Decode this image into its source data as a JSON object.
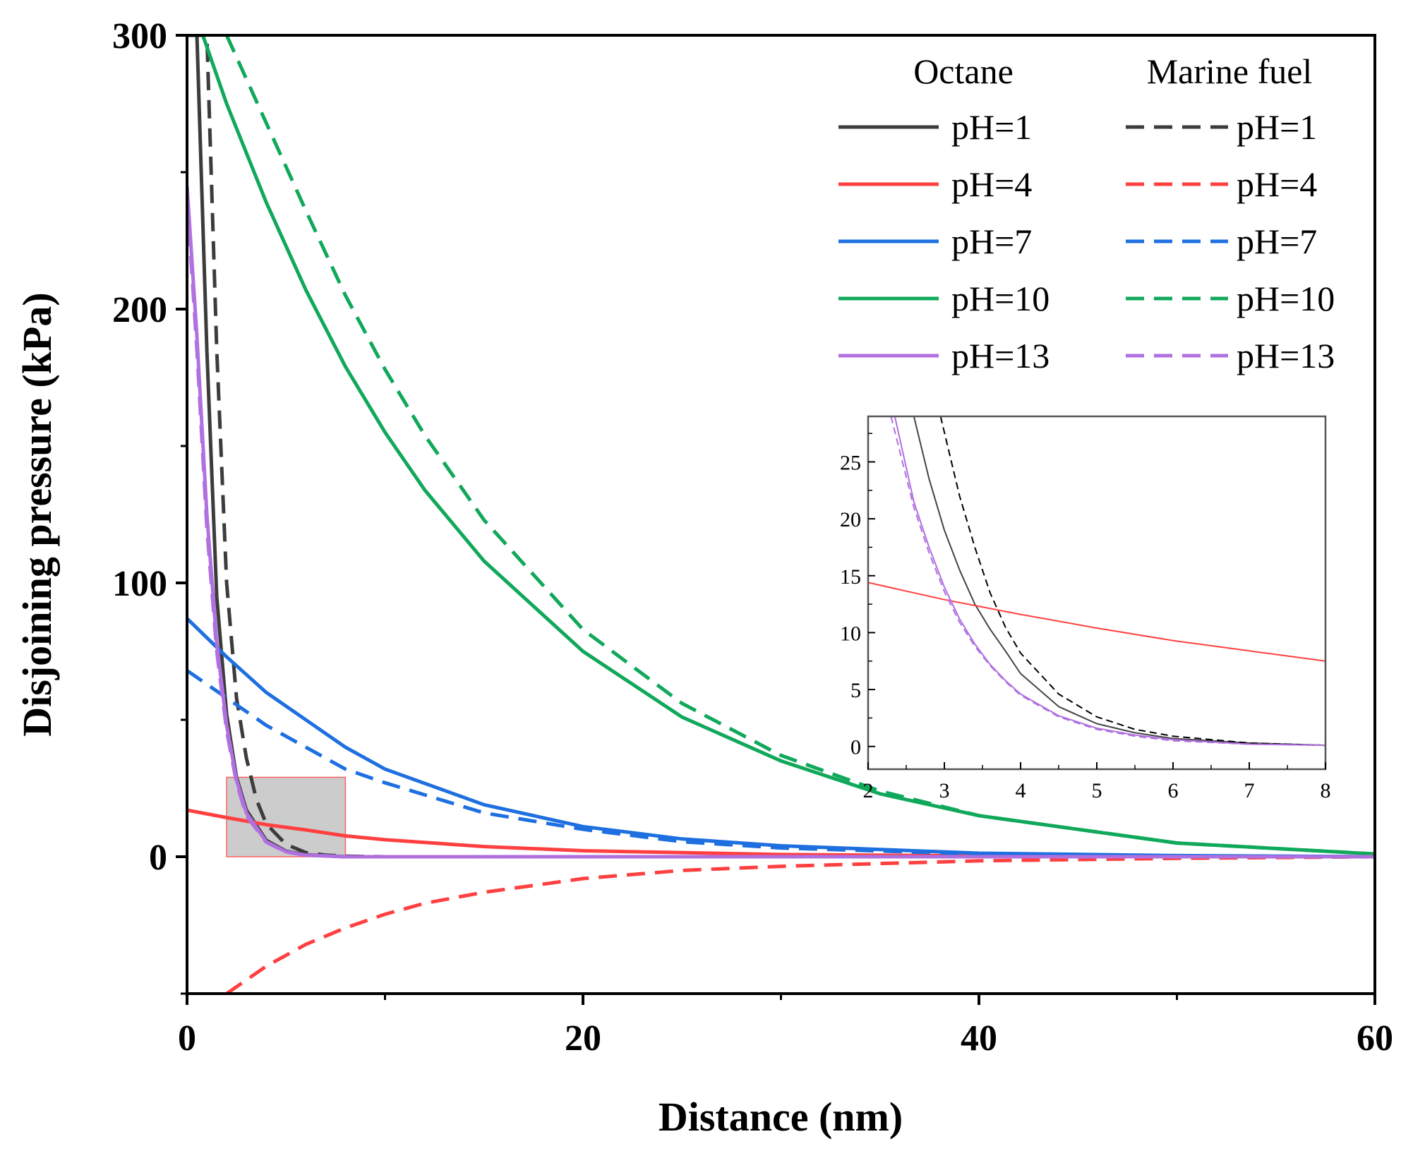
{
  "chart_data": [
    {
      "type": "line",
      "xlabel": "Distance (nm)",
      "ylabel": "Disjoining pressure (kPa)",
      "xlim": [
        0,
        60
      ],
      "ylim": [
        -50,
        300
      ],
      "x_ticks": [
        "0",
        "20",
        "40",
        "60"
      ],
      "y_ticks": [
        "0",
        "100",
        "200",
        "300"
      ],
      "grid": false,
      "legend": {
        "placement": "top-right",
        "column_headers": [
          "Octane",
          "Marine fuel"
        ],
        "rows": [
          "pH=1",
          "pH=4",
          "pH=7",
          "pH=10",
          "pH=13"
        ]
      },
      "highlight_region": {
        "x": [
          2,
          8
        ],
        "y": [
          0,
          29
        ],
        "color": "#cccccc"
      },
      "series": [
        {
          "legend_row": 0,
          "column": 0,
          "color": "#3c3c3c",
          "style": "solid",
          "x": [
            0,
            0.5,
            1,
            1.5,
            2,
            2.5,
            3,
            4,
            5,
            6,
            8,
            10,
            20,
            40,
            60
          ],
          "y": [
            300,
            300,
            185,
            95,
            52,
            29,
            17,
            6,
            2,
            0.7,
            0,
            0,
            0,
            0,
            0
          ]
        },
        {
          "legend_row": 0,
          "column": 1,
          "color": "#3c3c3c",
          "style": "dashed",
          "x": [
            0,
            1,
            1.5,
            2,
            2.5,
            3,
            3.5,
            4,
            5,
            6,
            7,
            8,
            10,
            14
          ],
          "y": [
            300,
            300,
            185,
            100,
            58,
            36,
            21,
            12,
            4.5,
            1.5,
            0.6,
            0.2,
            0,
            0
          ]
        },
        {
          "legend_row": 1,
          "column": 0,
          "color": "#ff4040",
          "style": "solid",
          "x": [
            0,
            2,
            4,
            6,
            8,
            10,
            15,
            20,
            30,
            40,
            60
          ],
          "y": [
            17,
            14.3,
            11.7,
            9.8,
            7.6,
            6.2,
            3.7,
            2.2,
            0.8,
            0.3,
            0
          ]
        },
        {
          "legend_row": 1,
          "column": 1,
          "color": "#ff4040",
          "style": "dashed",
          "x": [
            2,
            4,
            6,
            8,
            10,
            12,
            15,
            20,
            25,
            30,
            40,
            50,
            60
          ],
          "y": [
            -50,
            -40,
            -32,
            -26,
            -21,
            -17,
            -13,
            -8,
            -5,
            -3.5,
            -1.5,
            -0.6,
            0
          ]
        },
        {
          "legend_row": 2,
          "column": 0,
          "color": "#1e6fe0",
          "style": "solid",
          "x": [
            0,
            2,
            4,
            6,
            8,
            10,
            15,
            20,
            25,
            30,
            40,
            50,
            60
          ],
          "y": [
            87,
            73,
            60,
            50,
            40,
            32,
            19,
            11,
            6.5,
            4,
            1.3,
            0.4,
            0
          ]
        },
        {
          "legend_row": 2,
          "column": 1,
          "color": "#1e6fe0",
          "style": "dashed",
          "x": [
            0,
            2,
            4,
            6,
            8,
            10,
            15,
            20,
            25,
            30,
            40,
            50,
            60
          ],
          "y": [
            68,
            58,
            48,
            40,
            32,
            27,
            16,
            10,
            5.5,
            3.2,
            1,
            0.3,
            0
          ]
        },
        {
          "legend_row": 3,
          "column": 0,
          "color": "#10a85a",
          "style": "solid",
          "x": [
            0.8,
            2,
            4,
            6,
            8,
            10,
            12,
            15,
            20,
            25,
            30,
            35,
            40,
            50,
            60
          ],
          "y": [
            300,
            275,
            239,
            207,
            179,
            155,
            134,
            108,
            75,
            51,
            35,
            23,
            15,
            5,
            1
          ]
        },
        {
          "legend_row": 3,
          "column": 1,
          "color": "#10a85a",
          "style": "dashed",
          "x": [
            2,
            4,
            6,
            8,
            10,
            12,
            15,
            20,
            25,
            30,
            35,
            40,
            50,
            60
          ],
          "y": [
            300,
            268,
            236,
            205,
            178,
            154,
            123,
            83,
            56,
            37,
            24,
            15,
            5,
            1
          ]
        },
        {
          "legend_row": 4,
          "column": 0,
          "color": "#b070e0",
          "style": "solid",
          "x": [
            0,
            0.5,
            1,
            1.5,
            2,
            2.5,
            3,
            4,
            5,
            6,
            8,
            10,
            20,
            40,
            60
          ],
          "y": [
            245,
            190,
            125,
            78,
            48,
            28,
            16,
            5.5,
            1.8,
            0.6,
            0,
            0,
            0,
            0,
            0
          ]
        },
        {
          "legend_row": 4,
          "column": 1,
          "color": "#b070e0",
          "style": "dashed",
          "x": [
            0,
            0.5,
            1,
            1.5,
            2,
            2.5,
            3,
            4,
            5,
            6,
            8,
            10,
            20,
            40,
            60
          ],
          "y": [
            240,
            185,
            120,
            75,
            46,
            27,
            15,
            5.3,
            1.7,
            0.6,
            0,
            0,
            0,
            0,
            0
          ]
        }
      ]
    },
    {
      "type": "line",
      "role": "inset",
      "xlim": [
        2,
        8
      ],
      "ylim": [
        -2,
        29
      ],
      "x_ticks": [
        "2",
        "3",
        "4",
        "5",
        "6",
        "7",
        "8"
      ],
      "y_ticks": [
        "0",
        "5",
        "10",
        "15",
        "20",
        "25"
      ],
      "series": [
        {
          "color": "#444444",
          "style": "solid",
          "x": [
            2.6,
            2.8,
            3.0,
            3.2,
            3.4,
            3.6,
            3.8,
            4.0,
            4.5,
            5.0,
            5.5,
            6.0,
            7.0,
            8.0
          ],
          "y": [
            29,
            23.5,
            19,
            15.5,
            12.5,
            10.3,
            8.4,
            6.4,
            3.5,
            2.0,
            1.2,
            0.7,
            0.3,
            0.1
          ]
        },
        {
          "color": "#000000",
          "style": "dashed",
          "x": [
            2.95,
            3.2,
            3.4,
            3.6,
            3.8,
            4.0,
            4.5,
            5.0,
            5.5,
            6.0,
            7.0,
            8.0
          ],
          "y": [
            29,
            22,
            17.5,
            13.5,
            10.5,
            8.2,
            4.6,
            2.6,
            1.5,
            0.9,
            0.3,
            0.1
          ]
        },
        {
          "color": "#ff4040",
          "style": "solid",
          "x": [
            2,
            3,
            4,
            5,
            6,
            7,
            8
          ],
          "y": [
            14.4,
            12.9,
            11.6,
            10.4,
            9.3,
            8.4,
            7.5
          ]
        },
        {
          "color": "#b070e0",
          "style": "solid",
          "x": [
            2.35,
            2.6,
            2.8,
            3.0,
            3.2,
            3.4,
            3.6,
            3.8,
            4.0,
            4.5,
            5.0,
            5.5,
            6.0,
            7.0,
            8.0
          ],
          "y": [
            29,
            21.5,
            17.5,
            14,
            11.2,
            9,
            7.2,
            5.8,
            4.6,
            2.7,
            1.6,
            1.0,
            0.6,
            0.2,
            0.1
          ]
        },
        {
          "color": "#b070e0",
          "style": "dashed",
          "x": [
            2.3,
            2.6,
            2.8,
            3.0,
            3.2,
            3.4,
            3.6,
            3.8,
            4.0,
            4.5,
            5.0,
            5.5,
            6.0,
            7.0,
            8.0
          ],
          "y": [
            29,
            21,
            17,
            13.6,
            10.9,
            8.8,
            7.1,
            5.7,
            4.5,
            2.6,
            1.5,
            0.9,
            0.5,
            0.2,
            0.1
          ]
        }
      ]
    }
  ]
}
